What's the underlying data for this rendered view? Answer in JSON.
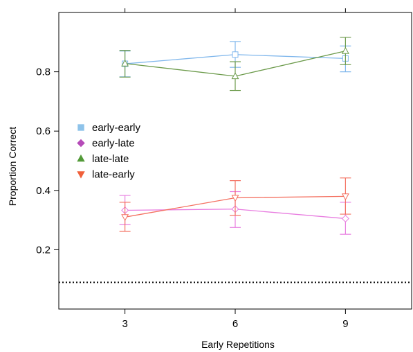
{
  "chart_data": {
    "type": "line",
    "xlabel": "Early Repetitions",
    "ylabel": "Proportion Correct",
    "categories": [
      "3",
      "6",
      "9"
    ],
    "x": [
      3,
      6,
      9
    ],
    "xlim": [
      1.2,
      10.8
    ],
    "ylim": [
      0.0,
      1.0
    ],
    "yticks": [
      0.2,
      0.4,
      0.6,
      0.8
    ],
    "ytick_labels": [
      "0.2",
      "0.4",
      "0.6",
      "0.8"
    ],
    "grid": false,
    "legend_position": "middle-left",
    "reference_line": {
      "y": 0.09,
      "style": "dotted"
    },
    "series": [
      {
        "name": "early-early",
        "color": "#80b7ec",
        "marker": "square",
        "values": [
          0.827,
          0.858,
          0.845
        ],
        "errors_low": [
          0.783,
          0.815,
          0.8
        ],
        "errors_high": [
          0.87,
          0.902,
          0.887
        ]
      },
      {
        "name": "early-late",
        "color": "#e87de0",
        "marker": "diamond",
        "values": [
          0.333,
          0.337,
          0.305
        ],
        "errors_low": [
          0.285,
          0.275,
          0.252
        ],
        "errors_high": [
          0.383,
          0.396,
          0.36
        ]
      },
      {
        "name": "late-late",
        "color": "#6b9a4a",
        "marker": "triangle-up",
        "values": [
          0.828,
          0.785,
          0.87
        ],
        "errors_low": [
          0.782,
          0.737,
          0.824
        ],
        "errors_high": [
          0.872,
          0.834,
          0.916
        ]
      },
      {
        "name": "late-early",
        "color": "#f47060",
        "marker": "triangle-down",
        "values": [
          0.31,
          0.375,
          0.38
        ],
        "errors_low": [
          0.262,
          0.316,
          0.32
        ],
        "errors_high": [
          0.36,
          0.433,
          0.442
        ]
      }
    ],
    "legend": [
      {
        "label": "early-early",
        "color": "#8ec3ea",
        "marker": "square"
      },
      {
        "label": "early-late",
        "color": "#b54bb8",
        "marker": "diamond"
      },
      {
        "label": "late-late",
        "color": "#529a38",
        "marker": "triangle-up"
      },
      {
        "label": "late-early",
        "color": "#f0603a",
        "marker": "triangle-down"
      }
    ]
  }
}
